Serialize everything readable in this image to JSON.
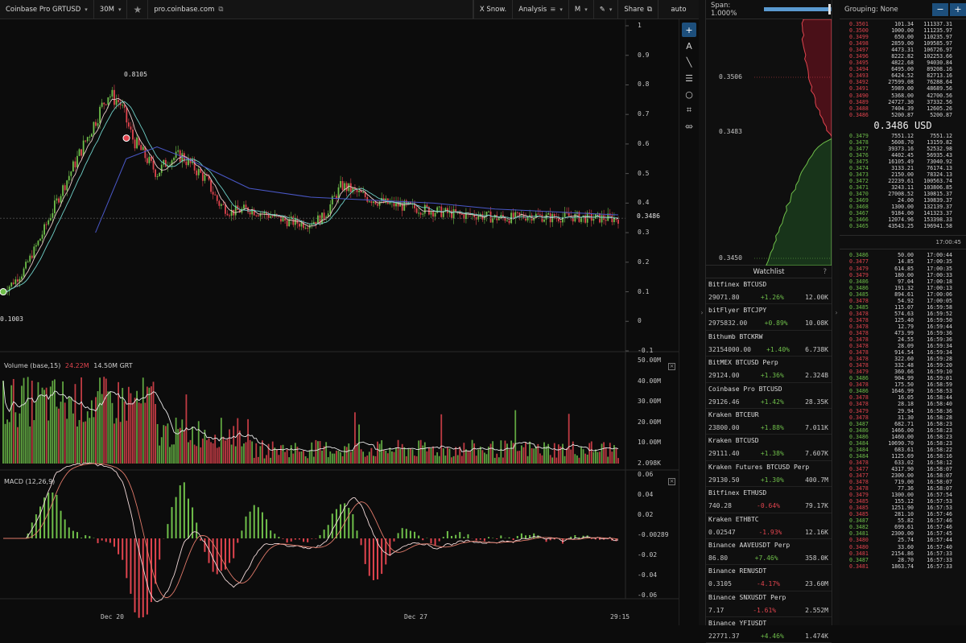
{
  "toolbar": {
    "symbol": "Coinbase Pro GRTUSD",
    "interval": "30M",
    "url": "pro.coinbase.com",
    "snow": "X Snow.",
    "analysis": "Analysis",
    "mode": "M",
    "share": "Share",
    "scale": "auto"
  },
  "chart_data": [
    {
      "type": "candlestick",
      "symbol": "GRTUSD",
      "y_ticks": [
        "1",
        "0.9",
        "0.8",
        "0.7",
        "0.6",
        "0.5",
        "0.4",
        "0.3",
        "0.2",
        "0.1",
        "0",
        "-0.1"
      ],
      "ylim": [
        -0.1,
        1
      ],
      "x_ticks": [
        "Dec 20",
        "Dec 27",
        "29:15"
      ],
      "last_price": "0.3486",
      "annotations": {
        "high": "0.8105",
        "low": "0.1003"
      },
      "series": [
        {
          "name": "price",
          "x": [
            0,
            0.03,
            0.06,
            0.09,
            0.12,
            0.15,
            0.17,
            0.19,
            0.21,
            0.23,
            0.25,
            0.27,
            0.29,
            0.31,
            0.33,
            0.35,
            0.37,
            0.4,
            0.43,
            0.46,
            0.49,
            0.52,
            0.55,
            0.57,
            0.59,
            0.62,
            0.65,
            0.68,
            0.71,
            0.74,
            0.77,
            0.8,
            0.83,
            0.86,
            0.89,
            0.92,
            0.95,
            0.98,
            1.0
          ],
          "values": [
            0.1,
            0.16,
            0.28,
            0.42,
            0.55,
            0.68,
            0.77,
            0.74,
            0.62,
            0.56,
            0.5,
            0.55,
            0.56,
            0.52,
            0.48,
            0.4,
            0.37,
            0.38,
            0.36,
            0.34,
            0.33,
            0.35,
            0.46,
            0.44,
            0.42,
            0.4,
            0.39,
            0.38,
            0.37,
            0.36,
            0.36,
            0.35,
            0.35,
            0.36,
            0.35,
            0.355,
            0.35,
            0.349,
            0.3486
          ]
        },
        {
          "name": "ma-long",
          "x": [
            0.15,
            0.2,
            0.25,
            0.3,
            0.35,
            0.4,
            0.5,
            0.6,
            0.7,
            0.8,
            0.9,
            1.0
          ],
          "values": [
            0.3,
            0.55,
            0.59,
            0.55,
            0.5,
            0.45,
            0.42,
            0.41,
            0.4,
            0.38,
            0.37,
            0.36
          ]
        }
      ]
    },
    {
      "type": "bar",
      "title": "Volume (base,15)",
      "legend": [
        "24.22M",
        "14.50M GRT"
      ],
      "y_ticks": [
        "50.00M",
        "40.00M",
        "30.00M",
        "20.00M",
        "10.00M",
        "2.098K"
      ],
      "ylim": [
        0,
        50000000
      ]
    },
    {
      "type": "line",
      "title": "MACD (12,26,9)",
      "y_ticks": [
        "0.06",
        "0.04",
        "0.02",
        "-0.00289",
        "-0.02",
        "-0.04",
        "-0.06"
      ],
      "ylim": [
        -0.06,
        0.06
      ],
      "last_value": "-0.00289"
    }
  ],
  "depth": {
    "span_label": "Span: 1.000%",
    "span_fraction": 0.95,
    "y_ticks": [
      "0.3506",
      "0.3483",
      "0.3450"
    ]
  },
  "watchlist": {
    "title": "Watchlist",
    "help": "?",
    "items": [
      {
        "name": "Bitfinex BTCUSD",
        "price": "29071.80",
        "change": "+1.26%",
        "volume": "12.00K",
        "dir": "pos"
      },
      {
        "name": "bitFlyer BTCJPY",
        "price": "2975832.00",
        "change": "+0.89%",
        "volume": "10.08K",
        "dir": "pos"
      },
      {
        "name": "Bithumb BTCKRW",
        "price": "32154000.00",
        "change": "+1.40%",
        "volume": "6.738K",
        "dir": "pos"
      },
      {
        "name": "BitMEX BTCUSD Perp",
        "price": "29124.00",
        "change": "+1.36%",
        "volume": "2.324B",
        "dir": "pos"
      },
      {
        "name": "Coinbase Pro BTCUSD",
        "price": "29126.46",
        "change": "+1.42%",
        "volume": "28.35K",
        "dir": "pos"
      },
      {
        "name": "Kraken BTCEUR",
        "price": "23800.00",
        "change": "+1.88%",
        "volume": "7.011K",
        "dir": "pos"
      },
      {
        "name": "Kraken BTCUSD",
        "price": "29111.40",
        "change": "+1.38%",
        "volume": "7.607K",
        "dir": "pos"
      },
      {
        "name": "Kraken Futures BTCUSD Perp",
        "price": "29130.50",
        "change": "+1.30%",
        "volume": "400.7M",
        "dir": "pos"
      },
      {
        "name": "Bitfinex ETHUSD",
        "price": "740.28",
        "change": "-0.64%",
        "volume": "79.17K",
        "dir": "neg"
      },
      {
        "name": "Kraken ETHBTC",
        "price": "0.02547",
        "change": "-1.93%",
        "volume": "12.16K",
        "dir": "neg"
      },
      {
        "name": "Binance AAVEUSDT Perp",
        "price": "86.80",
        "change": "+7.46%",
        "volume": "358.0K",
        "dir": "pos"
      },
      {
        "name": "Binance RENUSDT",
        "price": "0.3105",
        "change": "-4.17%",
        "volume": "23.60M",
        "dir": "neg"
      },
      {
        "name": "Binance SNXUSDT Perp",
        "price": "7.17",
        "change": "-1.61%",
        "volume": "2.552M",
        "dir": "neg"
      },
      {
        "name": "Binance YFIUSDT",
        "price": "22771.37",
        "change": "+4.46%",
        "volume": "1.474K",
        "dir": "pos"
      }
    ]
  },
  "orderbook": {
    "grouping": "Grouping: None",
    "minus": "−",
    "plus": "+",
    "mid_price": "0.3486 USD",
    "asks": [
      [
        "0.3501",
        "101.34",
        "111337.31"
      ],
      [
        "0.3500",
        "1000.00",
        "111235.97"
      ],
      [
        "0.3499",
        "650.00",
        "110235.97"
      ],
      [
        "0.3498",
        "2859.00",
        "109585.97"
      ],
      [
        "0.3497",
        "4473.31",
        "106726.97"
      ],
      [
        "0.3496",
        "8222.82",
        "102253.66"
      ],
      [
        "0.3495",
        "4822.68",
        "94030.84"
      ],
      [
        "0.3494",
        "6495.00",
        "89208.16"
      ],
      [
        "0.3493",
        "6424.52",
        "82713.16"
      ],
      [
        "0.3492",
        "27599.08",
        "76288.64"
      ],
      [
        "0.3491",
        "5989.00",
        "48689.56"
      ],
      [
        "0.3490",
        "5368.00",
        "42700.56"
      ],
      [
        "0.3489",
        "24727.30",
        "37332.56"
      ],
      [
        "0.3488",
        "7404.39",
        "12605.26"
      ],
      [
        "0.3486",
        "5200.87",
        "5200.87"
      ]
    ],
    "bids": [
      [
        "0.3479",
        "7551.12",
        "7551.12"
      ],
      [
        "0.3478",
        "5608.70",
        "13159.82"
      ],
      [
        "0.3477",
        "39373.16",
        "52532.98"
      ],
      [
        "0.3476",
        "4402.45",
        "56935.43"
      ],
      [
        "0.3475",
        "16105.49",
        "73040.92"
      ],
      [
        "0.3474",
        "3133.21",
        "76174.13"
      ],
      [
        "0.3473",
        "2150.00",
        "78324.13"
      ],
      [
        "0.3472",
        "22239.61",
        "100563.74"
      ],
      [
        "0.3471",
        "3243.11",
        "103806.85"
      ],
      [
        "0.3470",
        "27008.52",
        "130815.37"
      ],
      [
        "0.3469",
        "24.00",
        "130839.37"
      ],
      [
        "0.3468",
        "1300.00",
        "132139.37"
      ],
      [
        "0.3467",
        "9184.00",
        "141323.37"
      ],
      [
        "0.3466",
        "12074.96",
        "153398.33"
      ],
      [
        "0.3465",
        "43543.25",
        "196941.58"
      ]
    ]
  },
  "trades": {
    "header_time": "17:00:45",
    "rows": [
      [
        "0.3486",
        "50.00",
        "17:00:44",
        "bid"
      ],
      [
        "0.3477",
        "14.85",
        "17:00:35",
        "ask"
      ],
      [
        "0.3479",
        "614.85",
        "17:00:35",
        "ask"
      ],
      [
        "0.3479",
        "180.00",
        "17:00:33",
        "ask"
      ],
      [
        "0.3486",
        "97.04",
        "17:00:18",
        "bid"
      ],
      [
        "0.3486",
        "191.32",
        "17:00:13",
        "bid"
      ],
      [
        "0.3485",
        "894.61",
        "17:00:06",
        "bid"
      ],
      [
        "0.3478",
        "54.92",
        "17:00:05",
        "ask"
      ],
      [
        "0.3485",
        "115.07",
        "16:59:58",
        "bid"
      ],
      [
        "0.3478",
        "574.63",
        "16:59:52",
        "ask"
      ],
      [
        "0.3478",
        "125.40",
        "16:59:50",
        "ask"
      ],
      [
        "0.3478",
        "12.79",
        "16:59:44",
        "ask"
      ],
      [
        "0.3478",
        "473.99",
        "16:59:36",
        "ask"
      ],
      [
        "0.3478",
        "24.55",
        "16:59:36",
        "ask"
      ],
      [
        "0.3478",
        "28.09",
        "16:59:34",
        "ask"
      ],
      [
        "0.3478",
        "914.54",
        "16:59:34",
        "ask"
      ],
      [
        "0.3478",
        "322.60",
        "16:59:28",
        "ask"
      ],
      [
        "0.3478",
        "332.48",
        "16:59:20",
        "ask"
      ],
      [
        "0.3479",
        "360.66",
        "16:59:10",
        "ask"
      ],
      [
        "0.3486",
        "904.99",
        "16:59:01",
        "bid"
      ],
      [
        "0.3478",
        "175.50",
        "16:58:59",
        "ask"
      ],
      [
        "0.3486",
        "1646.99",
        "16:58:53",
        "bid"
      ],
      [
        "0.3478",
        "16.05",
        "16:58:44",
        "ask"
      ],
      [
        "0.3478",
        "28.18",
        "16:58:40",
        "ask"
      ],
      [
        "0.3479",
        "29.94",
        "16:58:36",
        "ask"
      ],
      [
        "0.3478",
        "31.30",
        "16:58:28",
        "ask"
      ],
      [
        "0.3487",
        "682.71",
        "16:58:23",
        "bid"
      ],
      [
        "0.3486",
        "1466.00",
        "16:58:23",
        "bid"
      ],
      [
        "0.3486",
        "1460.00",
        "16:58:23",
        "bid"
      ],
      [
        "0.3484",
        "10690.70",
        "16:58:23",
        "bid"
      ],
      [
        "0.3484",
        "683.61",
        "16:58:22",
        "bid"
      ],
      [
        "0.3484",
        "1125.69",
        "16:58:16",
        "bid"
      ],
      [
        "0.3478",
        "633.02",
        "16:58:12",
        "ask"
      ],
      [
        "0.3477",
        "4317.90",
        "16:58:07",
        "ask"
      ],
      [
        "0.3477",
        "2300.00",
        "16:58:07",
        "ask"
      ],
      [
        "0.3478",
        "719.00",
        "16:58:07",
        "ask"
      ],
      [
        "0.3478",
        "77.36",
        "16:58:07",
        "ask"
      ],
      [
        "0.3479",
        "1300.00",
        "16:57:54",
        "ask"
      ],
      [
        "0.3485",
        "155.12",
        "16:57:53",
        "ask"
      ],
      [
        "0.3485",
        "1251.90",
        "16:57:53",
        "ask"
      ],
      [
        "0.3485",
        "281.10",
        "16:57:46",
        "ask"
      ],
      [
        "0.3487",
        "55.82",
        "16:57:46",
        "bid"
      ],
      [
        "0.3482",
        "699.61",
        "16:57:46",
        "bid"
      ],
      [
        "0.3481",
        "2300.00",
        "16:57:45",
        "bid"
      ],
      [
        "0.3480",
        "25.74",
        "16:57:44",
        "ask"
      ],
      [
        "0.3480",
        "33.60",
        "16:57:40",
        "ask"
      ],
      [
        "0.3481",
        "2154.86",
        "16:57:33",
        "ask"
      ],
      [
        "0.3487",
        "28.70",
        "16:57:33",
        "bid"
      ],
      [
        "0.3481",
        "1863.74",
        "16:57:33",
        "ask"
      ]
    ]
  },
  "colors": {
    "up": "#6fbf4a",
    "down": "#e0444e",
    "accent": "#1d4f7c",
    "bg": "#0c0c0c"
  }
}
